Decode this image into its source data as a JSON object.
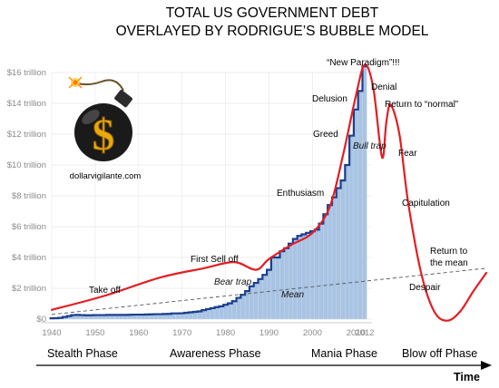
{
  "title_lines": [
    "TOTAL US GOVERNMENT DEBT",
    "OVERLAYED BY RODRIGUE’S BUBBLE MODEL"
  ],
  "brand": {
    "text": "dollarvigilante.com",
    "icon": "bomb-dollar-icon"
  },
  "colors": {
    "bars": "#a9c3e3",
    "bar_edge": "#c9d9ee",
    "debt_line": "#1a3f8c",
    "bubble_curve": "#e31e24",
    "mean_line": "#555555",
    "bomb_body": "#1a1a1a",
    "dollar": "#e8a90c"
  },
  "chart_data": {
    "type": "bar",
    "title": "TOTAL US GOVERNMENT DEBT OVERLAYED BY RODRIGUE’S BUBBLE MODEL",
    "xlabel": "Time",
    "ylabel": "",
    "x_ticks": [
      "1940",
      "1950",
      "1960",
      "1970",
      "1980",
      "1990",
      "2000",
      "2010",
      "2012"
    ],
    "y_ticks": [
      "$0",
      "$2 trillion",
      "$4 trillion",
      "$6 trillion",
      "$8 trillion",
      "$10 trillion",
      "$12 trillion",
      "$14 trillion",
      "$16 trillion"
    ],
    "ylim": [
      0,
      17
    ],
    "xlim": [
      1940,
      2012
    ],
    "grid": true,
    "series": [
      {
        "name": "Total US government debt",
        "unit": "trillion USD",
        "x": [
          1940,
          1941,
          1942,
          1943,
          1944,
          1945,
          1946,
          1947,
          1948,
          1949,
          1950,
          1951,
          1952,
          1953,
          1954,
          1955,
          1956,
          1957,
          1958,
          1959,
          1960,
          1961,
          1962,
          1963,
          1964,
          1965,
          1966,
          1967,
          1968,
          1969,
          1970,
          1971,
          1972,
          1973,
          1974,
          1975,
          1976,
          1977,
          1978,
          1979,
          1980,
          1981,
          1982,
          1983,
          1984,
          1985,
          1986,
          1987,
          1988,
          1989,
          1990,
          1991,
          1992,
          1993,
          1994,
          1995,
          1996,
          1997,
          1998,
          1999,
          2000,
          2001,
          2002,
          2003,
          2004,
          2005,
          2006,
          2007,
          2008,
          2009,
          2010,
          2011,
          2012
        ],
        "values": [
          0.05,
          0.06,
          0.08,
          0.14,
          0.2,
          0.26,
          0.27,
          0.26,
          0.25,
          0.25,
          0.26,
          0.26,
          0.26,
          0.27,
          0.27,
          0.27,
          0.27,
          0.27,
          0.28,
          0.29,
          0.29,
          0.29,
          0.3,
          0.31,
          0.32,
          0.32,
          0.33,
          0.34,
          0.37,
          0.37,
          0.38,
          0.41,
          0.44,
          0.47,
          0.5,
          0.58,
          0.65,
          0.71,
          0.78,
          0.83,
          0.93,
          1.02,
          1.16,
          1.38,
          1.58,
          1.82,
          2.13,
          2.35,
          2.6,
          2.87,
          3.2,
          4.0,
          4.0,
          4.4,
          4.6,
          4.9,
          5.2,
          5.4,
          5.5,
          5.6,
          5.7,
          5.8,
          6.2,
          6.8,
          7.4,
          7.9,
          8.5,
          9.0,
          10.0,
          11.9,
          13.6,
          14.8,
          16.4
        ]
      }
    ],
    "overlay": {
      "name": "Bubble model",
      "points": [
        [
          1940,
          0.6
        ],
        [
          1952,
          1.5
        ],
        [
          1965,
          2.7
        ],
        [
          1975,
          3.3
        ],
        [
          1982,
          3.7
        ],
        [
          1987,
          3.2
        ],
        [
          1990,
          3.9
        ],
        [
          1995,
          4.8
        ],
        [
          2000,
          5.6
        ],
        [
          2004,
          7.3
        ],
        [
          2007,
          10.6
        ],
        [
          2010,
          14.5
        ],
        [
          2012,
          16.5
        ],
        [
          2014,
          15.0
        ],
        [
          2016,
          10.5
        ],
        [
          2017,
          12.8
        ],
        [
          2018,
          13.9
        ],
        [
          2020,
          12.0
        ],
        [
          2022,
          7.6
        ],
        [
          2025,
          3.0
        ],
        [
          2028,
          0.5
        ],
        [
          2031,
          -0.1
        ],
        [
          2034,
          0.5
        ],
        [
          2037,
          1.8
        ],
        [
          2040,
          3.0
        ]
      ]
    },
    "mean_line": {
      "from": [
        1940,
        0.3
      ],
      "to": [
        2040,
        3.3
      ]
    },
    "annotations": [
      {
        "text": "“New Paradigm”!!!",
        "style": "normal"
      },
      {
        "text": "Denial",
        "style": "normal"
      },
      {
        "text": "Delusion",
        "style": "normal"
      },
      {
        "text": "Return to “normal”",
        "style": "normal"
      },
      {
        "text": "Greed",
        "style": "normal"
      },
      {
        "text": "Bull trap",
        "style": "italic"
      },
      {
        "text": "Fear",
        "style": "normal"
      },
      {
        "text": "Enthusiasm",
        "style": "normal"
      },
      {
        "text": "Capitulation",
        "style": "normal"
      },
      {
        "text": "Return to",
        "style": "normal"
      },
      {
        "text": "the mean",
        "style": "normal"
      },
      {
        "text": "First Sell off",
        "style": "normal"
      },
      {
        "text": "Bear trap",
        "style": "italic"
      },
      {
        "text": "Take off",
        "style": "normal"
      },
      {
        "text": "Despair",
        "style": "normal"
      },
      {
        "text": "Mean",
        "style": "italic"
      }
    ],
    "phases": [
      "Stealth Phase",
      "Awareness Phase",
      "Mania Phase",
      "Blow off Phase"
    ]
  }
}
